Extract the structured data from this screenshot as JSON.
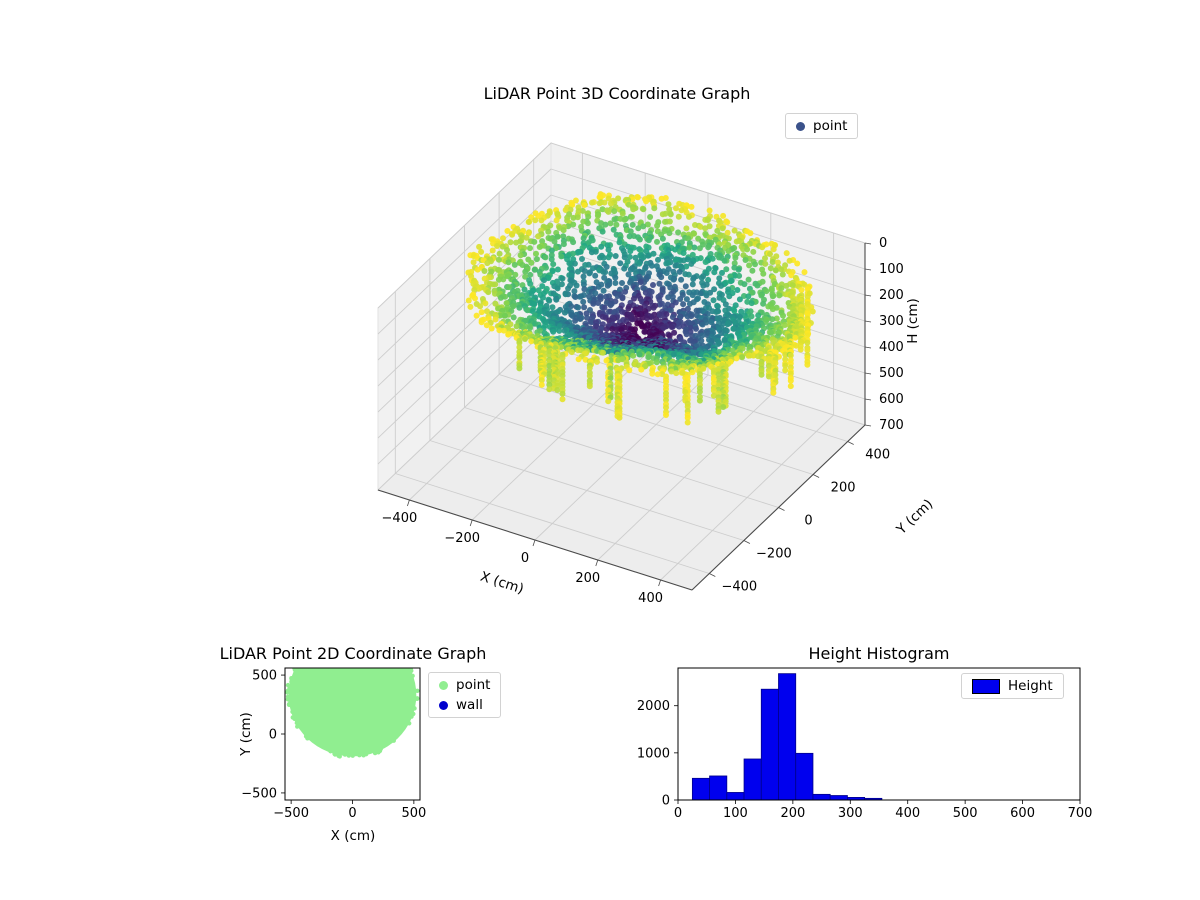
{
  "figure": {
    "background": "#ffffff"
  },
  "chart_data": [
    {
      "id": "lidar-3d",
      "type": "scatter",
      "projection": "3d",
      "title": "LiDAR Point 3D Coordinate Graph",
      "xlabel": "X (cm)",
      "ylabel": "Y (cm)",
      "zlabel": "H (cm)",
      "xlim": [
        -500,
        500
      ],
      "ylim": [
        -500,
        500
      ],
      "zlim": [
        0,
        700
      ],
      "zaxis_inverted": true,
      "xticks": [
        -400,
        -200,
        0,
        200,
        400
      ],
      "yticks": [
        -400,
        -200,
        0,
        200,
        400
      ],
      "zticks": [
        0,
        100,
        200,
        300,
        400,
        500,
        600,
        700
      ],
      "legend": [
        {
          "label": "point",
          "color": "#3b528b"
        }
      ],
      "colormap": "viridis",
      "point_cloud": {
        "shape": "annular bowl of LiDAR returns, dark (low radius) center, yellow rim",
        "center_xy": [
          0,
          110
        ],
        "radius_x": [
          35,
          490
        ],
        "radius_y": [
          35,
          430
        ],
        "height_range_cm": [
          95,
          330
        ],
        "color_by": "radius",
        "rings": 30,
        "wall_columns": 36
      }
    },
    {
      "id": "lidar-2d",
      "type": "scatter",
      "title": "LiDAR Point 2D Coordinate Graph",
      "xlabel": "X (cm)",
      "ylabel": "Y (cm)",
      "xlim": [
        -550,
        550
      ],
      "ylim": [
        -560,
        560
      ],
      "xticks": [
        -500,
        0,
        500
      ],
      "yticks": [
        -500,
        0,
        500
      ],
      "legend": [
        {
          "label": "point",
          "color": "#90ee90"
        },
        {
          "label": "wall",
          "color": "#0000cd"
        }
      ],
      "blob": {
        "cx": 0,
        "cy": 330,
        "rx": 520,
        "ry": 520,
        "color": "#90ee90",
        "clipped_top": true
      }
    },
    {
      "id": "height-hist",
      "type": "bar",
      "title": "Height Histogram",
      "legend": [
        {
          "label": "Height",
          "color": "#0000ee"
        }
      ],
      "bar_color": "#0000ee",
      "bar_edge": "#00008b",
      "bin_start": 25,
      "bin_width": 30,
      "values": [
        460,
        510,
        160,
        870,
        2350,
        2680,
        990,
        120,
        95,
        55,
        35
      ],
      "xlim": [
        0,
        700
      ],
      "ylim": [
        0,
        2800
      ],
      "xticks": [
        0,
        100,
        200,
        300,
        400,
        500,
        600,
        700
      ],
      "yticks": [
        0,
        1000,
        2000
      ]
    }
  ]
}
